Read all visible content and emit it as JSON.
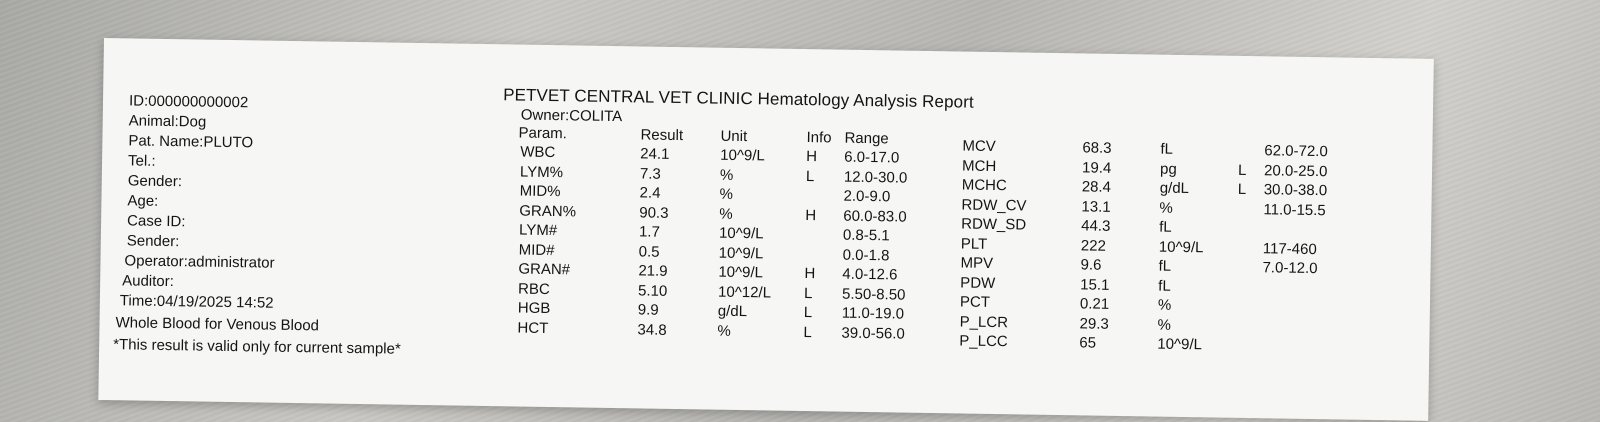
{
  "report": {
    "title": "PETVET CENTRAL VET CLINIC Hematology Analysis Report",
    "owner": "Owner:COLITA",
    "patient": [
      "ID:000000000002",
      "Animal:Dog",
      "Pat. Name:PLUTO",
      "Tel.:",
      "Gender:",
      "Age:",
      "Case ID:",
      "Sender:",
      "Operator:administrator",
      "Auditor:",
      "Time:04/19/2025 14:52",
      "Whole Blood for Venous Blood",
      "*This result is valid only for current sample*"
    ],
    "headers": {
      "param": "Param.",
      "result": "Result",
      "unit": "Unit",
      "info": "Info",
      "range": "Range"
    },
    "table1": [
      {
        "param": "WBC",
        "result": "24.1",
        "unit": "10^9/L",
        "info": "H",
        "range": "6.0-17.0"
      },
      {
        "param": "LYM%",
        "result": "7.3",
        "unit": "%",
        "info": "L",
        "range": "12.0-30.0"
      },
      {
        "param": "MID%",
        "result": "2.4",
        "unit": "%",
        "info": "",
        "range": "2.0-9.0"
      },
      {
        "param": "GRAN%",
        "result": "90.3",
        "unit": "%",
        "info": "H",
        "range": "60.0-83.0"
      },
      {
        "param": "LYM#",
        "result": "1.7",
        "unit": "10^9/L",
        "info": "",
        "range": "0.8-5.1"
      },
      {
        "param": "MID#",
        "result": "0.5",
        "unit": "10^9/L",
        "info": "",
        "range": "0.0-1.8"
      },
      {
        "param": "GRAN#",
        "result": "21.9",
        "unit": "10^9/L",
        "info": "H",
        "range": "4.0-12.6"
      },
      {
        "param": "RBC",
        "result": "5.10",
        "unit": "10^12/L",
        "info": "L",
        "range": "5.50-8.50"
      },
      {
        "param": "HGB",
        "result": "9.9",
        "unit": "g/dL",
        "info": "L",
        "range": "11.0-19.0"
      },
      {
        "param": "HCT",
        "result": "34.8",
        "unit": "%",
        "info": "L",
        "range": "39.0-56.0"
      }
    ],
    "table2": [
      {
        "param": "MCV",
        "result": "68.3",
        "unit": "fL",
        "info": "",
        "range": "62.0-72.0"
      },
      {
        "param": "MCH",
        "result": "19.4",
        "unit": "pg",
        "info": "L",
        "range": "20.0-25.0"
      },
      {
        "param": "MCHC",
        "result": "28.4",
        "unit": "g/dL",
        "info": "L",
        "range": "30.0-38.0"
      },
      {
        "param": "RDW_CV",
        "result": "13.1",
        "unit": "%",
        "info": "",
        "range": "11.0-15.5"
      },
      {
        "param": "RDW_SD",
        "result": "44.3",
        "unit": "fL",
        "info": "",
        "range": ""
      },
      {
        "param": "PLT",
        "result": "222",
        "unit": "10^9/L",
        "info": "",
        "range": "117-460"
      },
      {
        "param": "MPV",
        "result": "9.6",
        "unit": "fL",
        "info": "",
        "range": "7.0-12.0"
      },
      {
        "param": "PDW",
        "result": "15.1",
        "unit": "fL",
        "info": "",
        "range": ""
      },
      {
        "param": "PCT",
        "result": "0.21",
        "unit": "%",
        "info": "",
        "range": ""
      },
      {
        "param": "P_LCR",
        "result": "29.3",
        "unit": "%",
        "info": "",
        "range": ""
      },
      {
        "param": "P_LCC",
        "result": "65",
        "unit": "10^9/L",
        "info": "",
        "range": ""
      }
    ]
  }
}
